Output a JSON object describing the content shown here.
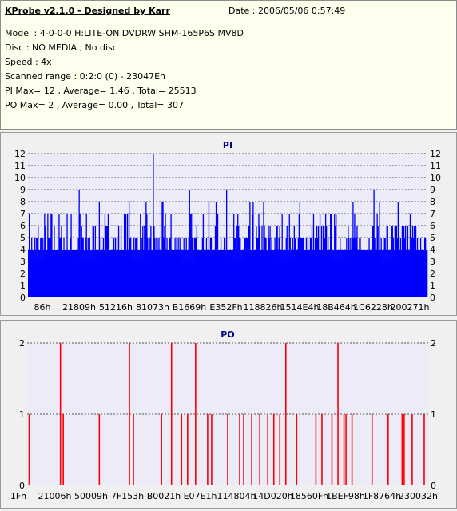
{
  "header": {
    "app_title": "KProbe v2.1.0 - Designed by Karr",
    "date": "Date : 2006/05/06 0:57:49",
    "model": "Model : 4-0-0-0 H:LITE-ON DVDRW SHM-165P6S MV8D",
    "disc": "Disc : NO MEDIA , No disc",
    "speed": "Speed : 4x",
    "scanned_range": "Scanned range : 0:2:0 (0) - 23047Eh",
    "pi_stats": "PI Max= 12 , Average= 1.46 , Total= 25513",
    "po_stats": "PO Max= 2 , Average= 0.00 , Total= 307"
  },
  "colors": {
    "pi_bar": "#0000ff",
    "po_bar": "#ff0000",
    "plot_bg": "#ececf8",
    "header_bg": "#ffffee",
    "panel_title": "#000080"
  },
  "chart_data": [
    {
      "type": "bar",
      "title": "PI",
      "xlabel": "",
      "ylabel": "",
      "ylim": [
        0,
        12
      ],
      "yticks": [
        0,
        1,
        2,
        3,
        4,
        5,
        6,
        7,
        8,
        9,
        10,
        11,
        12
      ],
      "x_tick_labels": [
        "86h",
        "21809h",
        "51216h",
        "81073h",
        "B1669h",
        "E352Fh",
        "118826h",
        "1514E4h",
        "18B464h",
        "1C6228h",
        "200271h"
      ],
      "grid": "horizontal dashed",
      "baseline_band": 3,
      "typical_max": 4,
      "average": 1.46,
      "peaks": [
        {
          "x": "81073h",
          "value": 12
        },
        {
          "x": "21809h",
          "value": 9
        },
        {
          "x": "B1669h",
          "value": 9
        },
        {
          "x": "E352Fh",
          "value": 9
        },
        {
          "x": "1C6228h",
          "value": 9
        },
        {
          "x": "118826h",
          "value": 8
        },
        {
          "x": "1514E4h",
          "value": 8
        },
        {
          "x": "200271h",
          "value": 7
        }
      ]
    },
    {
      "type": "bar",
      "title": "PO",
      "xlabel": "",
      "ylabel": "",
      "ylim": [
        0,
        2
      ],
      "yticks": [
        0,
        1,
        2
      ],
      "x_tick_labels": [
        "1Fh",
        "21006h",
        "50009h",
        "7F153h",
        "B0021h",
        "E07E1h",
        "114804h",
        "14D020h",
        "18560Fh",
        "1BEF98h",
        "1F8764h",
        "230032h"
      ],
      "grid": "horizontal dashed",
      "spike_fractions": [
        0.005,
        0.083,
        0.09,
        0.18,
        0.255,
        0.265,
        0.335,
        0.36,
        0.385,
        0.4,
        0.42,
        0.45,
        0.46,
        0.5,
        0.53,
        0.54,
        0.56,
        0.58,
        0.6,
        0.615,
        0.63,
        0.645,
        0.672,
        0.72,
        0.735,
        0.76,
        0.775,
        0.79,
        0.795,
        0.81,
        0.86,
        0.9,
        0.935,
        0.94,
        0.96,
        0.99
      ],
      "spike_values": [
        1,
        2,
        1,
        1,
        2,
        1,
        1,
        2,
        1,
        1,
        2,
        1,
        1,
        1,
        1,
        1,
        1,
        1,
        1,
        1,
        1,
        2,
        1,
        1,
        1,
        1,
        2,
        1,
        1,
        1,
        1,
        1,
        1,
        1,
        1,
        1
      ]
    }
  ]
}
